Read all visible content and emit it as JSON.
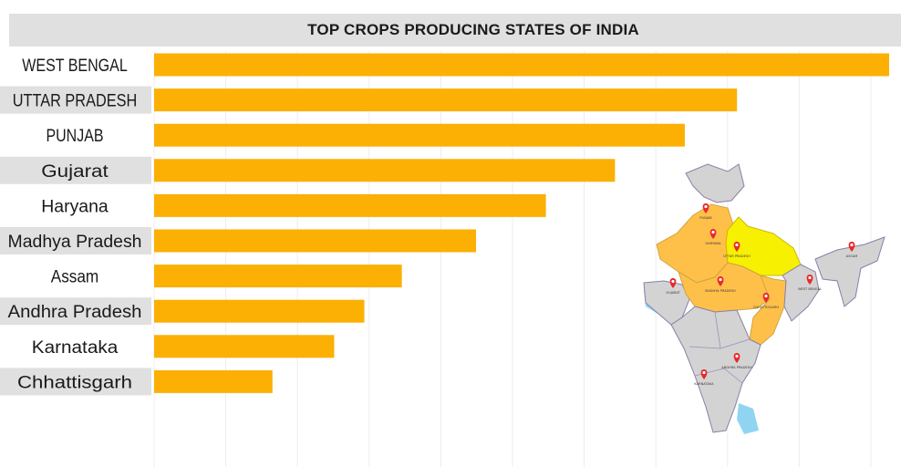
{
  "title": "TOP CROPS PRODUCING STATES OF INDIA",
  "colors": {
    "bar": "#fbb003",
    "label_band": "#e0e0e0",
    "map_base": "#d3d3d3",
    "map_orange": "#ffc04a",
    "map_yellow": "#f7f000",
    "map_water": "#8fd5f2",
    "pin": "#e8282c"
  },
  "chart_data": {
    "type": "bar",
    "orientation": "horizontal",
    "title": "TOP CROPS PRODUCING STATES OF INDIA",
    "categories": [
      "WEST BENGAL",
      "UTTAR PRADESH",
      "PUNJAB",
      "Gujarat",
      "Haryana",
      "Madhya Pradesh",
      "Assam",
      "Andhra Pradesh",
      "Karnataka",
      "Chhattisgarh"
    ],
    "values": [
      100,
      79.3,
      72.2,
      62.7,
      53.3,
      43.8,
      33.7,
      28.6,
      24.5,
      16.1
    ],
    "xlim": [
      0,
      100
    ],
    "grid": true,
    "value_labels": false,
    "shaded_label_rows": [
      "UTTAR PRADESH",
      "Gujarat",
      "Madhya Pradesh",
      "Andhra Pradesh",
      "Chhattisgarh"
    ]
  },
  "map": {
    "pins": [
      {
        "state": "PUNJAB"
      },
      {
        "state": "HARYANA"
      },
      {
        "state": "UTTAR PRADESH"
      },
      {
        "state": "ASSAM"
      },
      {
        "state": "GUJARAT"
      },
      {
        "state": "MADHYA PRADESH"
      },
      {
        "state": "CHHATTISGARH"
      },
      {
        "state": "WEST BENGAL"
      },
      {
        "state": "ANDHRA PRADESH"
      },
      {
        "state": "KARNATAKA"
      }
    ]
  }
}
